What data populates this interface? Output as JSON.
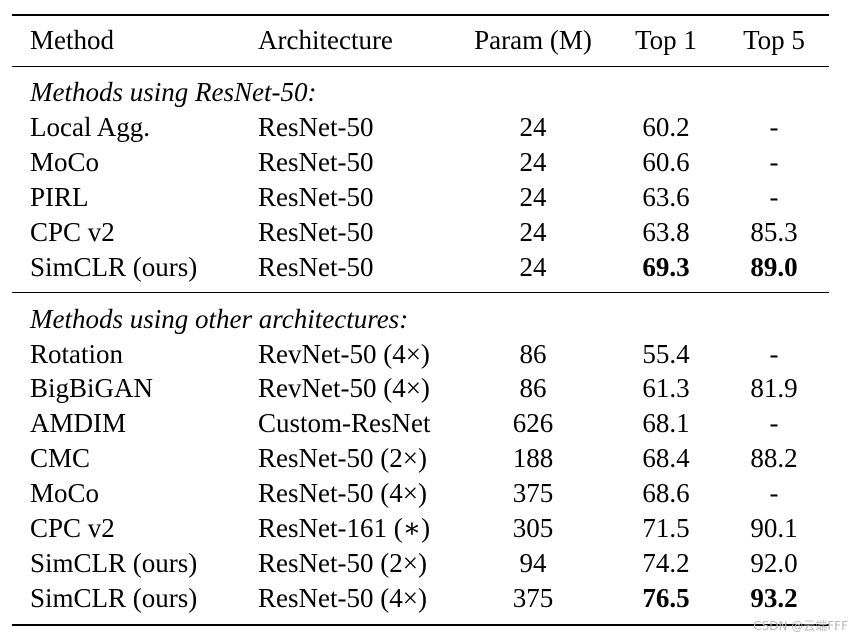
{
  "columns": [
    "Method",
    "Architecture",
    "Param (M)",
    "Top 1",
    "Top 5"
  ],
  "sections": [
    {
      "title": "Methods using ResNet-50:",
      "rows": [
        {
          "method": "Local Agg.",
          "arch": "ResNet-50",
          "param": "24",
          "top1": "60.2",
          "top5": "-",
          "bold1": false,
          "bold5": false
        },
        {
          "method": "MoCo",
          "arch": "ResNet-50",
          "param": "24",
          "top1": "60.6",
          "top5": "-",
          "bold1": false,
          "bold5": false
        },
        {
          "method": "PIRL",
          "arch": "ResNet-50",
          "param": "24",
          "top1": "63.6",
          "top5": "-",
          "bold1": false,
          "bold5": false
        },
        {
          "method": "CPC v2",
          "arch": "ResNet-50",
          "param": "24",
          "top1": "63.8",
          "top5": "85.3",
          "bold1": false,
          "bold5": false
        },
        {
          "method": "SimCLR (ours)",
          "arch": "ResNet-50",
          "param": "24",
          "top1": "69.3",
          "top5": "89.0",
          "bold1": true,
          "bold5": true
        }
      ]
    },
    {
      "title": "Methods using other architectures:",
      "rows": [
        {
          "method": "Rotation",
          "arch": "RevNet-50 (4×)",
          "param": "86",
          "top1": "55.4",
          "top5": "-",
          "bold1": false,
          "bold5": false
        },
        {
          "method": "BigBiGAN",
          "arch": "RevNet-50 (4×)",
          "param": "86",
          "top1": "61.3",
          "top5": "81.9",
          "bold1": false,
          "bold5": false
        },
        {
          "method": "AMDIM",
          "arch": "Custom-ResNet",
          "param": "626",
          "top1": "68.1",
          "top5": "-",
          "bold1": false,
          "bold5": false
        },
        {
          "method": "CMC",
          "arch": "ResNet-50 (2×)",
          "param": "188",
          "top1": "68.4",
          "top5": "88.2",
          "bold1": false,
          "bold5": false
        },
        {
          "method": "MoCo",
          "arch": "ResNet-50 (4×)",
          "param": "375",
          "top1": "68.6",
          "top5": "-",
          "bold1": false,
          "bold5": false
        },
        {
          "method": "CPC v2",
          "arch": "ResNet-161 (∗)",
          "param": "305",
          "top1": "71.5",
          "top5": "90.1",
          "bold1": false,
          "bold5": false
        },
        {
          "method": "SimCLR (ours)",
          "arch": "ResNet-50 (2×)",
          "param": "94",
          "top1": "74.2",
          "top5": "92.0",
          "bold1": false,
          "bold5": false
        },
        {
          "method": "SimCLR (ours)",
          "arch": "ResNet-50 (4×)",
          "param": "375",
          "top1": "76.5",
          "top5": "93.2",
          "bold1": true,
          "bold5": true
        }
      ]
    }
  ],
  "watermark": "CSDN @云端FFF"
}
